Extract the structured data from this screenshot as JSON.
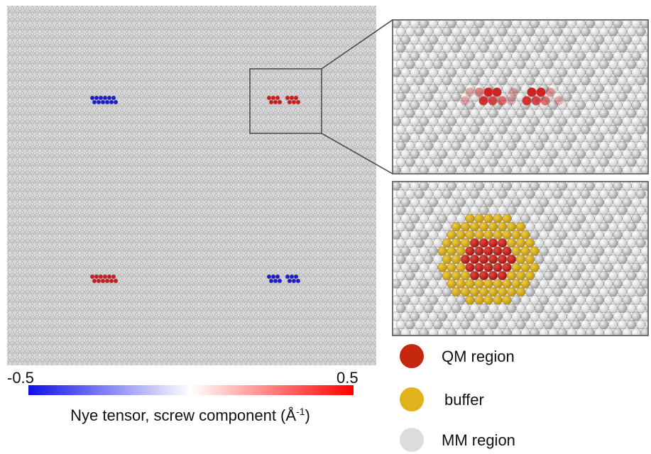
{
  "colorbar": {
    "min_label": "-0.5",
    "max_label": "0.5",
    "label": {
      "main": "Nye tensor, screw component (Å",
      "superscript": "-1",
      "end": ")"
    }
  },
  "legend": [
    {
      "label": "QM region"
    },
    {
      "label": "buffer"
    },
    {
      "label": "MM region"
    }
  ]
}
